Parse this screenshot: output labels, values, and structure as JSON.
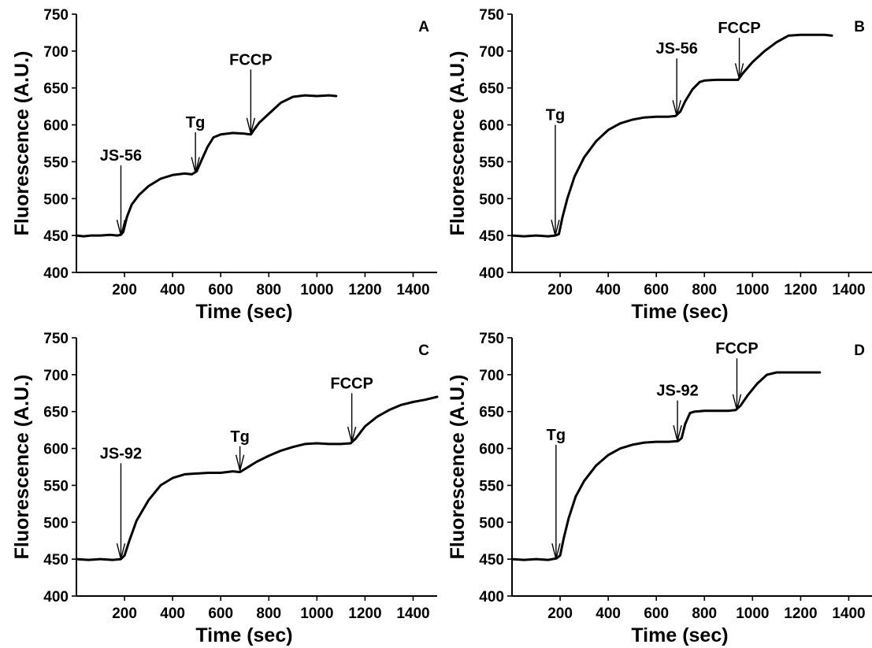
{
  "figure": {
    "panel_count": 4
  },
  "chart_data": [
    {
      "type": "line",
      "panel_label": "A",
      "xlabel": "Time (sec)",
      "ylabel": "Fluorescence (A.U.)",
      "xlim": [
        0,
        1500
      ],
      "ylim": [
        400,
        750
      ],
      "x_ticks": [
        200,
        400,
        600,
        800,
        1000,
        1200,
        1400
      ],
      "y_ticks": [
        400,
        450,
        500,
        550,
        600,
        650,
        700,
        750
      ],
      "series": [
        {
          "x": [
            0,
            30,
            60,
            100,
            140,
            170,
            185,
            195,
            210,
            230,
            260,
            300,
            350,
            400,
            450,
            480,
            500,
            520,
            545,
            570,
            600,
            650,
            700,
            725,
            740,
            760,
            800,
            850,
            900,
            950,
            1000,
            1050,
            1080
          ],
          "y": [
            450,
            449,
            450,
            450,
            451,
            450,
            451,
            455,
            475,
            492,
            505,
            517,
            527,
            532,
            534,
            533,
            537,
            552,
            570,
            583,
            587,
            589,
            588,
            587,
            594,
            603,
            615,
            630,
            638,
            640,
            639,
            640,
            639
          ]
        }
      ],
      "annotations": [
        {
          "text": "JS-56",
          "x": 185,
          "y_tip": 450,
          "y_tail": 545
        },
        {
          "text": "Tg",
          "x": 495,
          "y_tail": 590,
          "y_tip": 535
        },
        {
          "text": "FCCP",
          "x": 725,
          "y_tail": 675,
          "y_tip": 588
        }
      ]
    },
    {
      "type": "line",
      "panel_label": "B",
      "xlabel": "Time (sec)",
      "ylabel": "Fluorescence (A.U.)",
      "xlim": [
        0,
        1500
      ],
      "ylim": [
        400,
        750
      ],
      "x_ticks": [
        200,
        400,
        600,
        800,
        1000,
        1200,
        1400
      ],
      "y_ticks": [
        400,
        450,
        500,
        550,
        600,
        650,
        700,
        750
      ],
      "series": [
        {
          "x": [
            0,
            50,
            100,
            150,
            180,
            195,
            210,
            230,
            260,
            300,
            350,
            400,
            450,
            500,
            550,
            600,
            650,
            680,
            700,
            720,
            750,
            780,
            800,
            850,
            900,
            940,
            960,
            1000,
            1050,
            1100,
            1150,
            1200,
            1250,
            1300,
            1330
          ],
          "y": [
            450,
            449,
            450,
            449,
            450,
            452,
            475,
            500,
            530,
            556,
            578,
            593,
            602,
            607,
            610,
            611,
            611,
            612,
            618,
            632,
            648,
            658,
            660,
            661,
            661,
            661,
            670,
            685,
            700,
            712,
            721,
            722,
            722,
            722,
            721
          ]
        }
      ],
      "annotations": [
        {
          "text": "Tg",
          "x": 180,
          "y_tail": 600,
          "y_tip": 450
        },
        {
          "text": "JS-56",
          "x": 685,
          "y_tail": 690,
          "y_tip": 612
        },
        {
          "text": "FCCP",
          "x": 945,
          "y_tail": 718,
          "y_tip": 662
        }
      ]
    },
    {
      "type": "line",
      "panel_label": "C",
      "xlabel": "Time (sec)",
      "ylabel": "Fluorescence (A.U.)",
      "xlim": [
        0,
        1500
      ],
      "ylim": [
        400,
        750
      ],
      "x_ticks": [
        200,
        400,
        600,
        800,
        1000,
        1200,
        1400
      ],
      "y_ticks": [
        400,
        450,
        500,
        550,
        600,
        650,
        700,
        750
      ],
      "series": [
        {
          "x": [
            0,
            50,
            100,
            150,
            185,
            200,
            220,
            250,
            300,
            350,
            400,
            450,
            500,
            550,
            600,
            650,
            680,
            700,
            750,
            800,
            850,
            900,
            950,
            1000,
            1050,
            1100,
            1140,
            1160,
            1200,
            1250,
            1300,
            1350,
            1400,
            1450,
            1500
          ],
          "y": [
            450,
            449,
            450,
            449,
            450,
            455,
            475,
            502,
            530,
            550,
            560,
            565,
            566,
            567,
            567,
            569,
            568,
            572,
            582,
            590,
            597,
            602,
            606,
            607,
            606,
            606,
            607,
            613,
            630,
            643,
            652,
            659,
            663,
            666,
            670
          ]
        }
      ],
      "annotations": [
        {
          "text": "JS-92",
          "x": 185,
          "y_tail": 580,
          "y_tip": 450
        },
        {
          "text": "Tg",
          "x": 680,
          "y_tail": 603,
          "y_tip": 570
        },
        {
          "text": "FCCP",
          "x": 1145,
          "y_tail": 675,
          "y_tip": 608
        }
      ]
    },
    {
      "type": "line",
      "panel_label": "D",
      "xlabel": "Time (sec)",
      "ylabel": "Fluorescence (A.U.)",
      "xlim": [
        0,
        1500
      ],
      "ylim": [
        400,
        750
      ],
      "x_ticks": [
        200,
        400,
        600,
        800,
        1000,
        1200,
        1400
      ],
      "y_ticks": [
        400,
        450,
        500,
        550,
        600,
        650,
        700,
        750
      ],
      "series": [
        {
          "x": [
            0,
            50,
            100,
            150,
            185,
            200,
            215,
            235,
            265,
            300,
            350,
            400,
            450,
            500,
            550,
            600,
            650,
            690,
            705,
            720,
            740,
            760,
            800,
            850,
            900,
            930,
            950,
            980,
            1020,
            1060,
            1100,
            1150,
            1200,
            1250,
            1280
          ],
          "y": [
            450,
            449,
            450,
            449,
            451,
            455,
            478,
            505,
            535,
            556,
            577,
            591,
            600,
            605,
            608,
            609,
            609,
            610,
            614,
            633,
            648,
            650,
            651,
            651,
            651,
            652,
            658,
            672,
            688,
            700,
            703,
            703,
            703,
            703,
            703
          ]
        }
      ],
      "annotations": [
        {
          "text": "Tg",
          "x": 183,
          "y_tail": 605,
          "y_tip": 450
        },
        {
          "text": "JS-92",
          "x": 688,
          "y_tail": 665,
          "y_tip": 610
        },
        {
          "text": "FCCP",
          "x": 935,
          "y_tail": 722,
          "y_tip": 652
        }
      ]
    }
  ]
}
